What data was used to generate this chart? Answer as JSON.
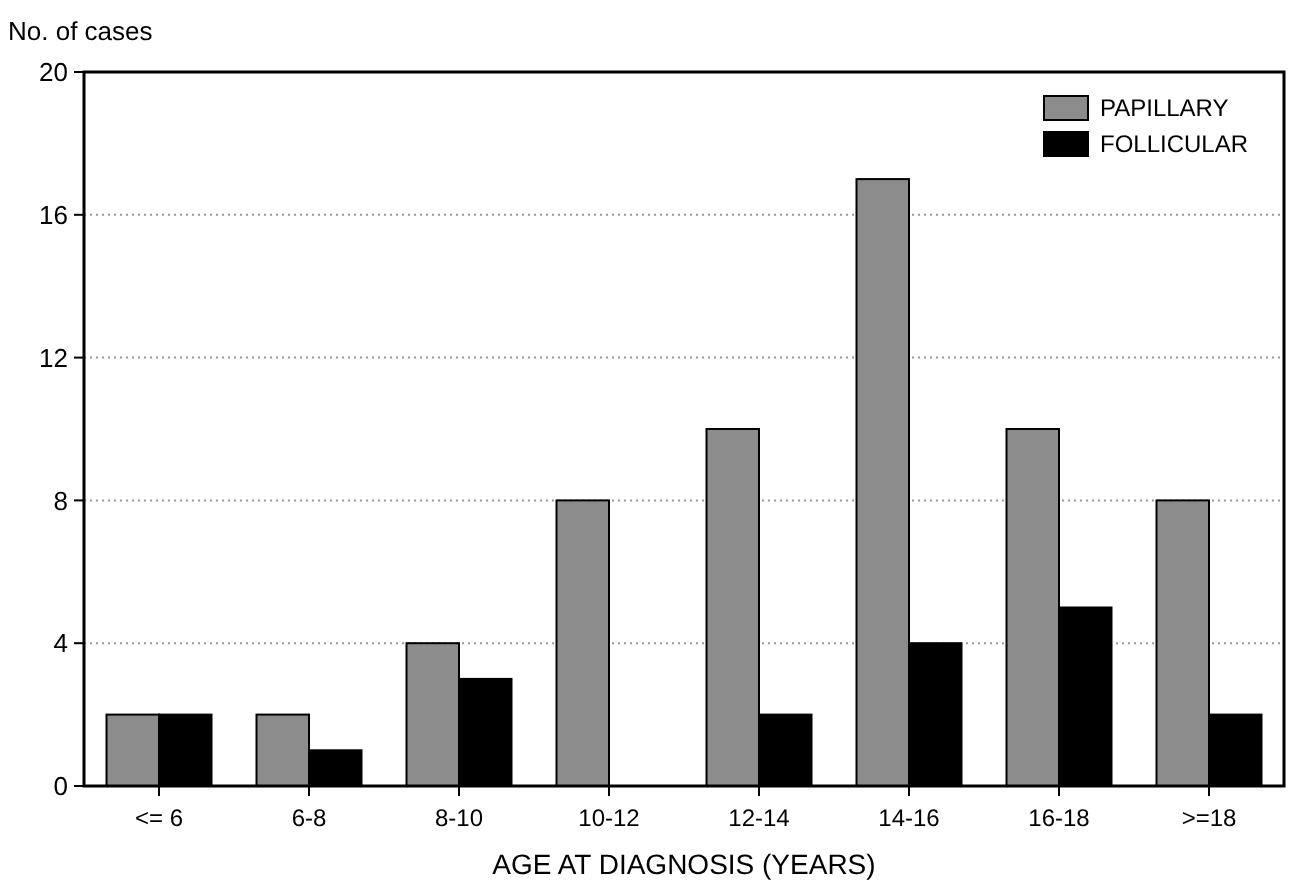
{
  "chart_data": {
    "type": "bar",
    "xlabel": "AGE AT DIAGNOSIS (YEARS)",
    "ylabel": "No. of cases",
    "categories": [
      "<= 6",
      "6-8",
      "8-10",
      "10-12",
      "12-14",
      "14-16",
      "16-18",
      ">=18"
    ],
    "series": [
      {
        "name": "PAPILLARY",
        "color": "#8c8c8c",
        "values": [
          2,
          2,
          4,
          8,
          10,
          17,
          10,
          8
        ]
      },
      {
        "name": "FOLLICULAR",
        "color": "#000000",
        "values": [
          2,
          1,
          3,
          0,
          2,
          4,
          5,
          2
        ]
      }
    ],
    "ylim": [
      0,
      20
    ],
    "yticks": [
      0,
      4,
      8,
      12,
      16,
      20
    ],
    "grid": "y",
    "legend": "top right"
  }
}
